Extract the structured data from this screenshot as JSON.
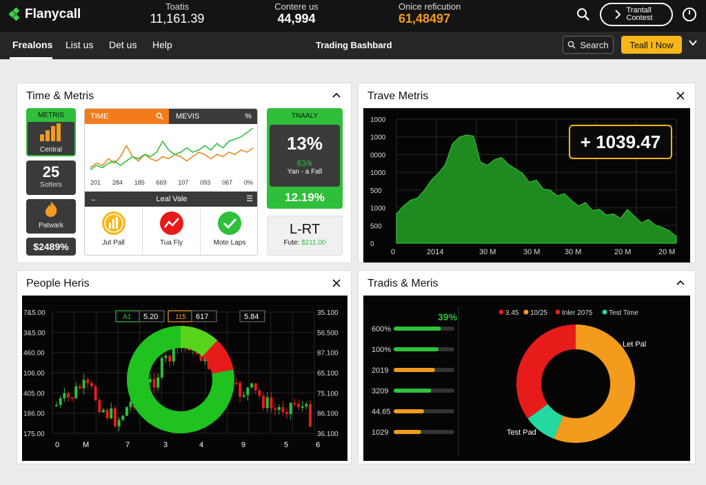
{
  "app": {
    "name": "Flanycall",
    "stats": [
      {
        "label": "Toatis",
        "value": "11,161.39"
      },
      {
        "label": "Contere us",
        "value": "44,994"
      },
      {
        "label": "Onice reficution",
        "value": "61,48497"
      }
    ],
    "contest_button": "Trantall Contest"
  },
  "nav": {
    "items": [
      "Frealons",
      "List us",
      "Det us",
      "Help"
    ],
    "title": "Trading Bashbard",
    "search_label": "Search",
    "trade_label": "Teall I Now"
  },
  "panel1": {
    "title": "Time & Metris",
    "metric_card": {
      "header": "METRIS",
      "label": "Central"
    },
    "score_card": {
      "value": "25",
      "label": "Sotters"
    },
    "fire_card": {
      "label": "Patwark"
    },
    "pct_card": {
      "value": "$2489%"
    },
    "mini_chart": {
      "tab_time": "TIME",
      "tab_mevis": "MEVIS",
      "pct_symbol": "%",
      "x_labels": [
        "201",
        "284",
        "185",
        "669",
        "107",
        "093",
        "067",
        "0%"
      ],
      "footer": "Leal Vale",
      "series": [
        {
          "name": "orange",
          "color": "#e8891c",
          "values": [
            4,
            6,
            5,
            8,
            6,
            9,
            14,
            9,
            7,
            10,
            8,
            7,
            9,
            8,
            10,
            9,
            7,
            9,
            11,
            10,
            8,
            10,
            9,
            11,
            10,
            12,
            11,
            13
          ]
        },
        {
          "name": "green",
          "color": "#2fbf3a",
          "values": [
            3,
            5,
            4,
            6,
            7,
            5,
            7,
            9,
            8,
            10,
            9,
            11,
            16,
            12,
            10,
            11,
            13,
            11,
            12,
            14,
            12,
            15,
            13,
            16,
            17,
            18,
            20,
            22
          ]
        }
      ]
    },
    "actions": [
      {
        "label": "Jut Pall",
        "icon": "bar-chart-icon"
      },
      {
        "label": "Tua Fly",
        "icon": "trend-line-icon"
      },
      {
        "label": "Mote Laps",
        "icon": "check-icon"
      }
    ],
    "green_card": {
      "header": "TNAALY",
      "big": "13%",
      "sub": "63/k",
      "sub2": "Yan - a Fall",
      "footer": "12.19%"
    },
    "lrt_card": {
      "title": "L-RT",
      "sub_label": "Fute:",
      "sub_value": "$211.00"
    }
  },
  "panel2": {
    "title": "Trave Metris",
    "badge": "+ 1039.47",
    "y_labels": [
      "1000",
      "1000",
      "0000",
      "1000",
      "500",
      "1000",
      "500",
      "0"
    ],
    "x_labels": [
      "0",
      "2014",
      "30 M",
      "30 M",
      "30 M",
      "20 M",
      "20 M"
    ],
    "chart_data": {
      "type": "area",
      "title": "",
      "x": [
        0,
        1,
        2,
        3,
        4,
        5,
        6,
        7,
        8,
        9,
        10,
        11,
        12,
        13,
        14,
        15,
        16,
        17,
        18,
        19,
        20,
        21,
        22,
        23,
        24,
        25,
        26,
        27,
        28,
        29,
        30,
        31,
        32,
        33,
        34,
        35,
        36,
        37,
        38,
        39,
        40
      ],
      "values": [
        260,
        330,
        380,
        400,
        470,
        560,
        620,
        700,
        880,
        940,
        960,
        950,
        720,
        690,
        740,
        760,
        700,
        660,
        620,
        540,
        560,
        480,
        470,
        420,
        440,
        380,
        330,
        360,
        290,
        300,
        250,
        260,
        220,
        300,
        240,
        180,
        210,
        160,
        140,
        110,
        60
      ],
      "ylim": [
        0,
        1100
      ]
    }
  },
  "panel3": {
    "title": "People Heris",
    "y_left": [
      "7&5.00",
      "3&5.00",
      "460.00",
      "106.00",
      "405.00",
      "186.00",
      "175.00"
    ],
    "y_right": [
      "35.100",
      "56.500",
      "87.100",
      "65.100",
      "75.100",
      "86.100",
      "36.100"
    ],
    "x_labels": [
      "0",
      "M",
      "7",
      "3",
      "4",
      "9",
      "5",
      "6"
    ],
    "legend": [
      {
        "label": "A1",
        "value": "5.20",
        "color": "#2fbf3a"
      },
      {
        "label": "115",
        "value": "617",
        "color": "#f29b1c"
      },
      {
        "label": "",
        "value": "5.84",
        "color": "#ffffff"
      }
    ],
    "chart_data": {
      "type": "candlestick",
      "donut": [
        {
          "label": "green",
          "value": 78,
          "color": "#1fc21f"
        },
        {
          "label": "lime",
          "value": 12,
          "color": "#58d41c"
        },
        {
          "label": "red",
          "value": 10,
          "color": "#e81b1b"
        }
      ]
    }
  },
  "panel4": {
    "title": "Tradis & Meris",
    "bars_header": "39%",
    "bars": [
      {
        "label": "600%",
        "value": 0.78,
        "color": "#2fc23a"
      },
      {
        "label": "100%",
        "value": 0.74,
        "color": "#2fc23a"
      },
      {
        "label": "2019",
        "value": 0.68,
        "color": "#f29b1c"
      },
      {
        "label": "3209",
        "value": 0.62,
        "color": "#2fc23a"
      },
      {
        "label": "44.65",
        "value": 0.5,
        "color": "#f29b1c"
      },
      {
        "label": "1029",
        "value": 0.45,
        "color": "#f29b1c"
      }
    ],
    "legend": [
      {
        "label": "3.45",
        "color": "#e81b1b"
      },
      {
        "label": "10/25",
        "color": "#f29b1c"
      },
      {
        "label": "Inler 2075",
        "color": "#e81b1b"
      },
      {
        "label": "Test Time",
        "color": "#23d9a1"
      }
    ],
    "donut_labels": [
      "Let Pal",
      "Test Pad"
    ],
    "chart_data": {
      "type": "pie",
      "slices": [
        {
          "label": "10/25",
          "value": 56,
          "color": "#f29b1c"
        },
        {
          "label": "Test Time",
          "value": 9,
          "color": "#23d9a1"
        },
        {
          "label": "3.45",
          "value": 35,
          "color": "#e81b1b"
        }
      ]
    }
  }
}
